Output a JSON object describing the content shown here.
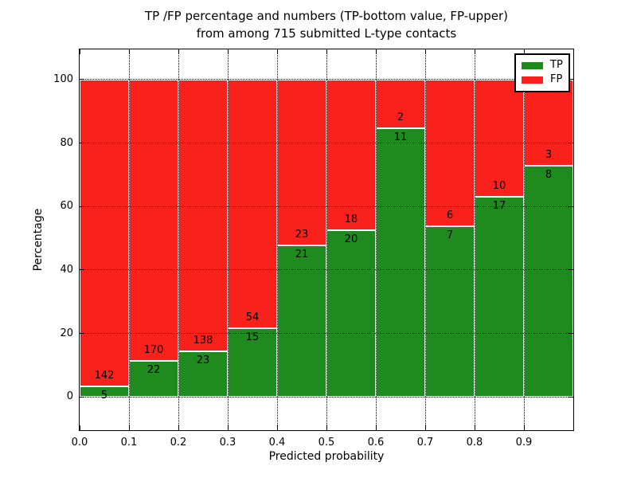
{
  "title": {
    "line1": "TP /FP percentage and numbers (TP-bottom value, FP-upper)",
    "line2": "from among 715 submitted L-type contacts"
  },
  "axes": {
    "xlabel": "Predicted probability",
    "ylabel": "Percentage"
  },
  "legend": {
    "items": [
      {
        "label": "TP",
        "color": "#1f8b1f"
      },
      {
        "label": "FP",
        "color": "#f8211b"
      }
    ]
  },
  "colors": {
    "tp_green": "#1f8b1f",
    "fp_red": "#f8211b",
    "grid": "#000000",
    "background": "#ffffff",
    "bar_edge": "#ffffff"
  },
  "chart_data": {
    "type": "bar",
    "stacked": true,
    "normalized": "percent",
    "title": "TP /FP percentage and numbers (TP-bottom value, FP-upper)\nfrom among 715 submitted L-type contacts",
    "xlabel": "Predicted probability",
    "ylabel": "Percentage",
    "xlim": [
      0.0,
      1.0
    ],
    "ylim": [
      -10.5,
      109.5
    ],
    "yticks": [
      0,
      20,
      40,
      60,
      80,
      100
    ],
    "xtick_labels": [
      "0.0",
      "0.1",
      "0.2",
      "0.3",
      "0.4",
      "0.5",
      "0.6",
      "0.7",
      "0.8",
      "0.9"
    ],
    "grid": true,
    "legend_position": "upper-right",
    "series": [
      {
        "name": "TP",
        "color": "#1f8b1f",
        "position": "bottom"
      },
      {
        "name": "FP",
        "color": "#f8211b",
        "position": "top"
      }
    ],
    "bins": [
      {
        "x0": 0.0,
        "x1": 0.1,
        "tp": 5,
        "fp": 142
      },
      {
        "x0": 0.1,
        "x1": 0.2,
        "tp": 22,
        "fp": 170
      },
      {
        "x0": 0.2,
        "x1": 0.3,
        "tp": 23,
        "fp": 138
      },
      {
        "x0": 0.3,
        "x1": 0.4,
        "tp": 15,
        "fp": 54
      },
      {
        "x0": 0.4,
        "x1": 0.5,
        "tp": 21,
        "fp": 23
      },
      {
        "x0": 0.5,
        "x1": 0.6,
        "tp": 20,
        "fp": 18
      },
      {
        "x0": 0.6,
        "x1": 0.7,
        "tp": 11,
        "fp": 2
      },
      {
        "x0": 0.7,
        "x1": 0.8,
        "tp": 7,
        "fp": 6
      },
      {
        "x0": 0.8,
        "x1": 0.9,
        "tp": 17,
        "fp": 10
      },
      {
        "x0": 0.9,
        "x1": 1.0,
        "tp": 8,
        "fp": 3
      }
    ]
  }
}
